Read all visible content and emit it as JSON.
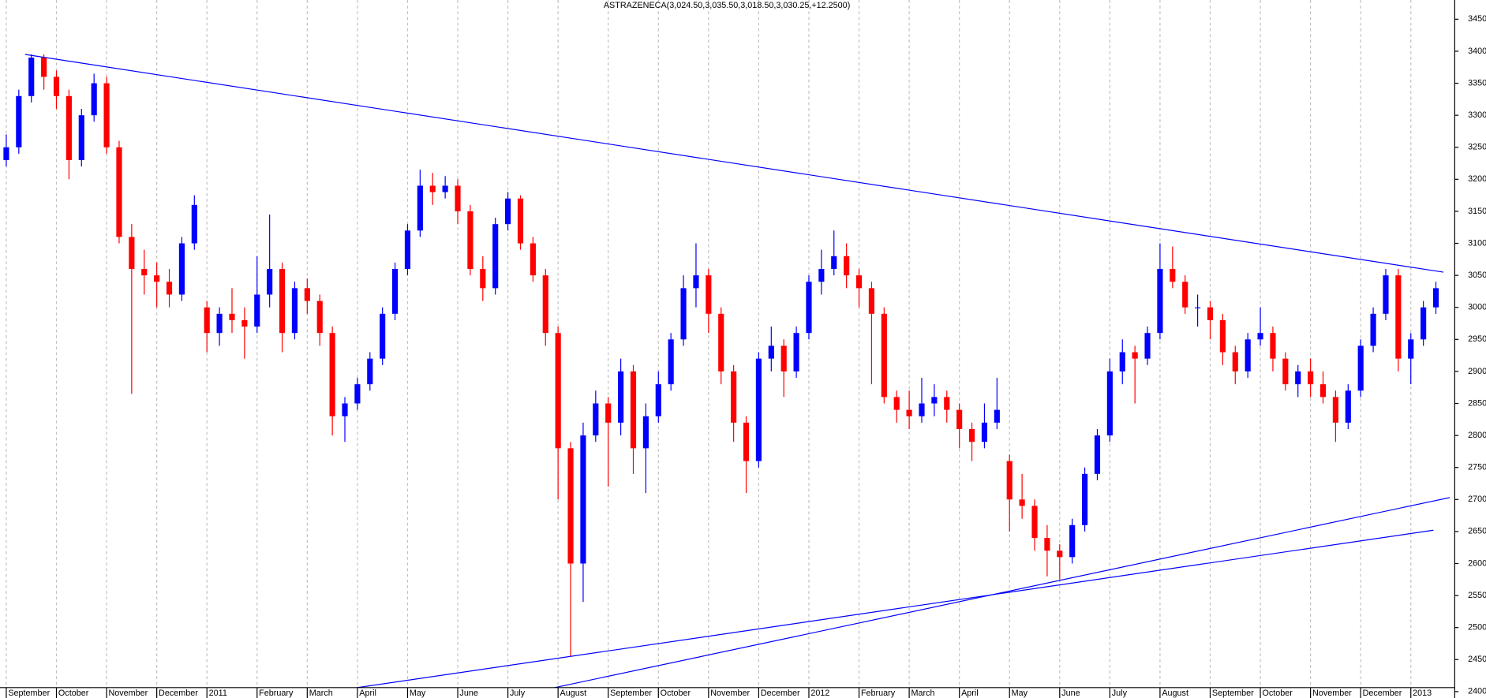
{
  "chart_data": {
    "type": "candlestick",
    "title": "ASTRAZENECA(3,024.50,3,035.50,3,018.50,3,030.25,+12.2500)",
    "up_color": "#0000ff",
    "down_color": "#ff0000",
    "line_color": "#0000ff",
    "grid": true,
    "xlim": [
      -0.5,
      115.5
    ],
    "ylim": [
      2390,
      3480
    ],
    "yticks": [
      2400,
      2450,
      2500,
      2550,
      2600,
      2650,
      2700,
      2750,
      2800,
      2850,
      2900,
      2950,
      3000,
      3050,
      3100,
      3150,
      3200,
      3250,
      3300,
      3350,
      3400,
      3450
    ],
    "xticks": [
      {
        "value": 0,
        "label": "September"
      },
      {
        "value": 4,
        "label": "October"
      },
      {
        "value": 8,
        "label": "November"
      },
      {
        "value": 12,
        "label": "December"
      },
      {
        "value": 16,
        "label": "2011"
      },
      {
        "value": 20,
        "label": "February"
      },
      {
        "value": 24,
        "label": "March"
      },
      {
        "value": 28,
        "label": "April"
      },
      {
        "value": 32,
        "label": "May"
      },
      {
        "value": 36,
        "label": "June"
      },
      {
        "value": 40,
        "label": "July"
      },
      {
        "value": 44,
        "label": "August"
      },
      {
        "value": 48,
        "label": "September"
      },
      {
        "value": 52,
        "label": "October"
      },
      {
        "value": 56,
        "label": "November"
      },
      {
        "value": 60,
        "label": "December"
      },
      {
        "value": 64,
        "label": "2012"
      },
      {
        "value": 68,
        "label": "February"
      },
      {
        "value": 72,
        "label": "March"
      },
      {
        "value": 76,
        "label": "April"
      },
      {
        "value": 80,
        "label": "May"
      },
      {
        "value": 84,
        "label": "June"
      },
      {
        "value": 88,
        "label": "July"
      },
      {
        "value": 92,
        "label": "August"
      },
      {
        "value": 96,
        "label": "September"
      },
      {
        "value": 100,
        "label": "October"
      },
      {
        "value": 104,
        "label": "November"
      },
      {
        "value": 108,
        "label": "December"
      },
      {
        "value": 112,
        "label": "2013"
      }
    ],
    "ohlc": [
      [
        3230,
        3270,
        3220,
        3250
      ],
      [
        3250,
        3340,
        3240,
        3330
      ],
      [
        3330,
        3395,
        3320,
        3390
      ],
      [
        3390,
        3395,
        3340,
        3360
      ],
      [
        3360,
        3370,
        3310,
        3330
      ],
      [
        3330,
        3340,
        3200,
        3230
      ],
      [
        3230,
        3310,
        3220,
        3300
      ],
      [
        3300,
        3365,
        3290,
        3350
      ],
      [
        3350,
        3360,
        3240,
        3250
      ],
      [
        3250,
        3260,
        3100,
        3110
      ],
      [
        3110,
        3130,
        2865,
        3060
      ],
      [
        3060,
        3090,
        3020,
        3050
      ],
      [
        3050,
        3070,
        3000,
        3040
      ],
      [
        3040,
        3060,
        3000,
        3020
      ],
      [
        3020,
        3110,
        3010,
        3100
      ],
      [
        3100,
        3175,
        3090,
        3160
      ],
      [
        3000,
        3010,
        2930,
        2960
      ],
      [
        2960,
        3000,
        2940,
        2990
      ],
      [
        2990,
        3030,
        2960,
        2980
      ],
      [
        2980,
        3000,
        2920,
        2970
      ],
      [
        2970,
        3080,
        2960,
        3020
      ],
      [
        3020,
        3145,
        3000,
        3060
      ],
      [
        3060,
        3070,
        2930,
        2960
      ],
      [
        2960,
        3040,
        2950,
        3030
      ],
      [
        3030,
        3045,
        2990,
        3010
      ],
      [
        3010,
        3020,
        2940,
        2960
      ],
      [
        2960,
        2970,
        2800,
        2830
      ],
      [
        2830,
        2860,
        2790,
        2850
      ],
      [
        2850,
        2890,
        2840,
        2880
      ],
      [
        2880,
        2930,
        2870,
        2920
      ],
      [
        2920,
        3000,
        2910,
        2990
      ],
      [
        2990,
        3070,
        2980,
        3060
      ],
      [
        3060,
        3130,
        3050,
        3120
      ],
      [
        3120,
        3215,
        3110,
        3190
      ],
      [
        3190,
        3210,
        3160,
        3180
      ],
      [
        3180,
        3205,
        3170,
        3190
      ],
      [
        3190,
        3200,
        3130,
        3150
      ],
      [
        3150,
        3160,
        3050,
        3060
      ],
      [
        3060,
        3080,
        3010,
        3030
      ],
      [
        3030,
        3140,
        3020,
        3130
      ],
      [
        3130,
        3180,
        3120,
        3170
      ],
      [
        3170,
        3175,
        3090,
        3100
      ],
      [
        3100,
        3110,
        3040,
        3050
      ],
      [
        3050,
        3060,
        2940,
        2960
      ],
      [
        2960,
        2970,
        2700,
        2780
      ],
      [
        2780,
        2790,
        2455,
        2600
      ],
      [
        2600,
        2820,
        2540,
        2800
      ],
      [
        2800,
        2870,
        2790,
        2850
      ],
      [
        2850,
        2860,
        2720,
        2820
      ],
      [
        2820,
        2920,
        2800,
        2900
      ],
      [
        2900,
        2910,
        2740,
        2780
      ],
      [
        2780,
        2850,
        2710,
        2830
      ],
      [
        2830,
        2900,
        2820,
        2880
      ],
      [
        2880,
        2960,
        2870,
        2950
      ],
      [
        2950,
        3050,
        2940,
        3030
      ],
      [
        3030,
        3100,
        3000,
        3050
      ],
      [
        3050,
        3060,
        2960,
        2990
      ],
      [
        2990,
        3000,
        2880,
        2900
      ],
      [
        2900,
        2910,
        2790,
        2820
      ],
      [
        2820,
        2830,
        2710,
        2760
      ],
      [
        2760,
        2930,
        2750,
        2920
      ],
      [
        2920,
        2970,
        2900,
        2940
      ],
      [
        2940,
        2950,
        2860,
        2900
      ],
      [
        2900,
        2970,
        2890,
        2960
      ],
      [
        2960,
        3050,
        2950,
        3040
      ],
      [
        3040,
        3090,
        3020,
        3060
      ],
      [
        3060,
        3120,
        3050,
        3080
      ],
      [
        3080,
        3100,
        3030,
        3050
      ],
      [
        3050,
        3060,
        3000,
        3030
      ],
      [
        3030,
        3040,
        2880,
        2990
      ],
      [
        2990,
        3000,
        2850,
        2860
      ],
      [
        2860,
        2870,
        2820,
        2840
      ],
      [
        2840,
        2870,
        2810,
        2830
      ],
      [
        2830,
        2890,
        2820,
        2850
      ],
      [
        2850,
        2880,
        2830,
        2860
      ],
      [
        2860,
        2870,
        2820,
        2840
      ],
      [
        2840,
        2850,
        2780,
        2810
      ],
      [
        2810,
        2820,
        2760,
        2790
      ],
      [
        2790,
        2850,
        2780,
        2820
      ],
      [
        2820,
        2890,
        2810,
        2840
      ],
      [
        2760,
        2770,
        2650,
        2700
      ],
      [
        2700,
        2740,
        2670,
        2690
      ],
      [
        2690,
        2700,
        2620,
        2640
      ],
      [
        2640,
        2660,
        2580,
        2620
      ],
      [
        2620,
        2630,
        2575,
        2610
      ],
      [
        2610,
        2670,
        2600,
        2660
      ],
      [
        2660,
        2750,
        2650,
        2740
      ],
      [
        2740,
        2810,
        2730,
        2800
      ],
      [
        2800,
        2920,
        2790,
        2900
      ],
      [
        2900,
        2950,
        2880,
        2930
      ],
      [
        2930,
        2940,
        2850,
        2920
      ],
      [
        2920,
        2970,
        2910,
        2960
      ],
      [
        2960,
        3100,
        2950,
        3060
      ],
      [
        3060,
        3095,
        3030,
        3040
      ],
      [
        3040,
        3050,
        2990,
        3000
      ],
      [
        3000,
        3020,
        2970,
        3000
      ],
      [
        3000,
        3010,
        2950,
        2980
      ],
      [
        2980,
        2990,
        2910,
        2930
      ],
      [
        2930,
        2940,
        2880,
        2900
      ],
      [
        2900,
        2960,
        2890,
        2950
      ],
      [
        2950,
        3000,
        2940,
        2960
      ],
      [
        2960,
        2970,
        2900,
        2920
      ],
      [
        2920,
        2930,
        2870,
        2880
      ],
      [
        2880,
        2910,
        2860,
        2900
      ],
      [
        2900,
        2920,
        2860,
        2880
      ],
      [
        2880,
        2900,
        2850,
        2860
      ],
      [
        2860,
        2870,
        2790,
        2820
      ],
      [
        2820,
        2880,
        2810,
        2870
      ],
      [
        2870,
        2950,
        2860,
        2940
      ],
      [
        2940,
        3000,
        2930,
        2990
      ],
      [
        2990,
        3060,
        2980,
        3050
      ],
      [
        3050,
        3060,
        2900,
        2920
      ],
      [
        2920,
        2960,
        2880,
        2950
      ],
      [
        2950,
        3010,
        2940,
        3000
      ],
      [
        3000,
        3040,
        2990,
        3030
      ]
    ],
    "trendlines": [
      {
        "x": [
          1.5,
          114.6
        ],
        "y": [
          3395,
          3055
        ]
      },
      {
        "x": [
          10.8,
          113.8
        ],
        "y": [
          2357,
          2652
        ]
      },
      {
        "x": [
          31.9,
          115.1
        ],
        "y": [
          2357,
          2703
        ]
      }
    ]
  }
}
